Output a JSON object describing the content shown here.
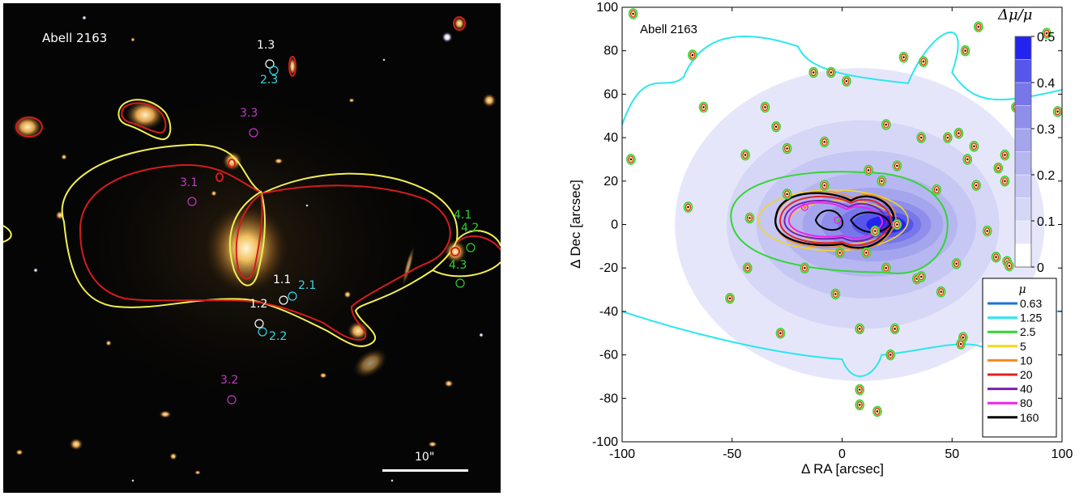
{
  "left_panel": {
    "title": "Abell 2163",
    "scale_bar_label": "10\"",
    "image_labels": [
      {
        "text": "1.3",
        "color": "#ffffff"
      },
      {
        "text": "2.3",
        "color": "#36d7e8"
      },
      {
        "text": "3.3",
        "color": "#c238c8"
      },
      {
        "text": "3.1",
        "color": "#c238c8"
      },
      {
        "text": "4.1",
        "color": "#2fd02f"
      },
      {
        "text": "4.2",
        "color": "#2fd02f"
      },
      {
        "text": "4.3",
        "color": "#2fd02f"
      },
      {
        "text": "1.1",
        "color": "#ffffff"
      },
      {
        "text": "2.1",
        "color": "#36d7e8"
      },
      {
        "text": "1.2",
        "color": "#ffffff"
      },
      {
        "text": "2.2",
        "color": "#36d7e8"
      },
      {
        "text": "3.2",
        "color": "#c238c8"
      }
    ],
    "curve_colors": {
      "outer": "#f2f052",
      "inner": "#d41c1c"
    }
  },
  "chart_data": {
    "type": "heatmap",
    "title": "Abell 2163",
    "xlabel": "Δ RA [arcsec]",
    "ylabel": "Δ Dec [arcsec]",
    "xlim": [
      -100,
      100
    ],
    "ylim": [
      -100,
      100
    ],
    "xticks": [
      -100,
      -50,
      0,
      50,
      100
    ],
    "yticks": [
      -100,
      -80,
      -60,
      -40,
      -20,
      0,
      20,
      40,
      60,
      80,
      100
    ],
    "colorbar": {
      "label": "Δμ/μ",
      "range": [
        0,
        0.5
      ],
      "ticks": [
        0,
        0.1,
        0.2,
        0.3,
        0.4,
        0.5
      ],
      "levels": [
        "#ffffff",
        "#e6e6fb",
        "#d6d6f7",
        "#c7c7f4",
        "#b6b6f1",
        "#a5a5ee",
        "#8f8feb",
        "#7777ea",
        "#5656ec",
        "#2323f0"
      ]
    },
    "legend": {
      "title": "μ",
      "placement": "bottom-right",
      "entries": [
        {
          "label": "0.63",
          "color": "#1a73d8"
        },
        {
          "label": "1.25",
          "color": "#2ee6ec"
        },
        {
          "label": "2.5",
          "color": "#33d633"
        },
        {
          "label": "5",
          "color": "#f2d620"
        },
        {
          "label": "10",
          "color": "#f28c1c"
        },
        {
          "label": "20",
          "color": "#e41f1f"
        },
        {
          "label": "40",
          "color": "#7a1fb0"
        },
        {
          "label": "80",
          "color": "#ee24ee"
        },
        {
          "label": "160",
          "color": "#000000"
        }
      ]
    },
    "cluster_members": [
      [
        -95,
        97
      ],
      [
        -96,
        30
      ],
      [
        -70,
        8
      ],
      [
        -68,
        78
      ],
      [
        -63,
        54
      ],
      [
        -51,
        -34
      ],
      [
        -43,
        -20
      ],
      [
        -42,
        3
      ],
      [
        -44,
        32
      ],
      [
        -35,
        54
      ],
      [
        -30,
        45
      ],
      [
        -25,
        35
      ],
      [
        -25,
        14
      ],
      [
        -17,
        -20
      ],
      [
        -13,
        70
      ],
      [
        -8,
        38
      ],
      [
        -8,
        18
      ],
      [
        -5,
        70
      ],
      [
        -1,
        -13
      ],
      [
        -3,
        -32
      ],
      [
        2,
        66
      ],
      [
        8,
        -48
      ],
      [
        11,
        -13
      ],
      [
        12,
        25
      ],
      [
        15,
        -3
      ],
      [
        18,
        20
      ],
      [
        20,
        46
      ],
      [
        20,
        -20
      ],
      [
        22,
        -60
      ],
      [
        25,
        27
      ],
      [
        25,
        0
      ],
      [
        28,
        77
      ],
      [
        24,
        -48
      ],
      [
        34,
        -25
      ],
      [
        36,
        -24
      ],
      [
        36,
        40
      ],
      [
        37,
        75
      ],
      [
        43,
        16
      ],
      [
        45,
        -31
      ],
      [
        48,
        40
      ],
      [
        53,
        42
      ],
      [
        52,
        -18
      ],
      [
        55,
        -52
      ],
      [
        54,
        -55
      ],
      [
        56,
        80
      ],
      [
        60,
        36
      ],
      [
        57,
        30
      ],
      [
        62,
        91
      ],
      [
        61,
        18
      ],
      [
        66,
        -3
      ],
      [
        71,
        26
      ],
      [
        70,
        -15
      ],
      [
        74,
        32
      ],
      [
        74,
        20
      ],
      [
        75,
        -17
      ],
      [
        76,
        -19
      ],
      [
        79,
        54
      ],
      [
        87,
        -40
      ],
      [
        93,
        88
      ],
      [
        98,
        52
      ],
      [
        8,
        -76
      ],
      [
        8,
        -83
      ],
      [
        16,
        -86
      ],
      [
        -28,
        -50
      ]
    ]
  }
}
